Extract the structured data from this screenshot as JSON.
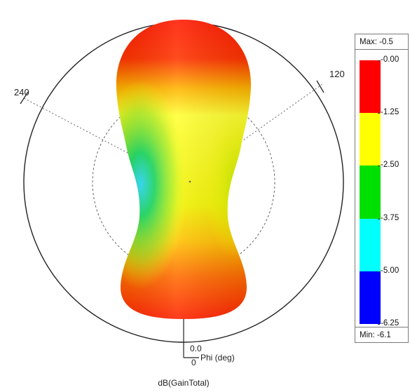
{
  "chart_data": {
    "type": "polar_3d_radiation_pattern",
    "quantity": "dB(GainTotal)",
    "angle_labels": [
      "240",
      "120",
      "0"
    ],
    "phi_axis_label": "Phi (deg)",
    "phi_axis_value": "0.0",
    "legend": {
      "max_label": "Max: -0.5",
      "min_label": "Min: -6.1",
      "ticks": [
        "-0.00",
        "-1.25",
        "-2.50",
        "-3.75",
        "-5.00",
        "-6.25"
      ],
      "band_colors": [
        "#ff0000",
        "#ffff00",
        "#00e000",
        "#00ffff",
        "#0000ff"
      ]
    }
  }
}
